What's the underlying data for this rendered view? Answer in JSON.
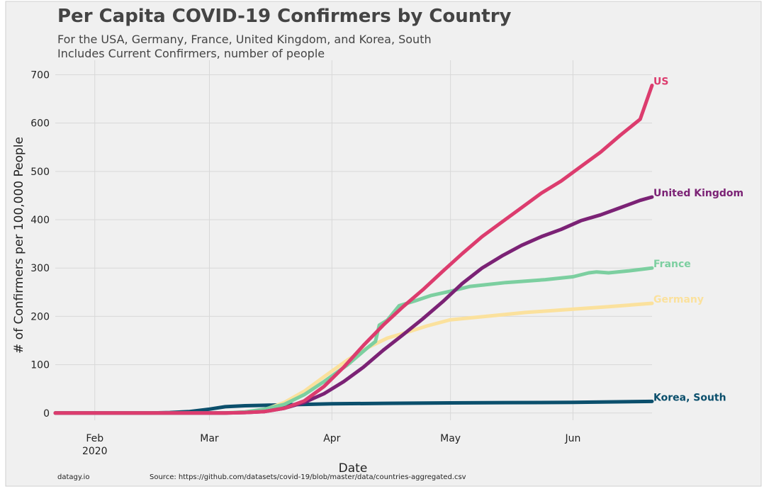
{
  "chart_data": {
    "type": "line",
    "title": "Per Capita COVID-19 Confirmers by Country",
    "subtitle_lines": [
      "For the USA, Germany, France, United Kingdom, and Korea, South",
      "Includes Current Confirmers, number of people"
    ],
    "xlabel": "Date",
    "ylabel": "# of Confirmers per 100,000 People",
    "xlim": [
      "2020-01-22",
      "2020-06-21"
    ],
    "ylim": [
      -15,
      730
    ],
    "x_ticks": [
      {
        "date": "2020-02-01",
        "label": "Feb",
        "sublabel": "2020"
      },
      {
        "date": "2020-03-01",
        "label": "Mar",
        "sublabel": ""
      },
      {
        "date": "2020-04-01",
        "label": "Apr",
        "sublabel": ""
      },
      {
        "date": "2020-05-01",
        "label": "May",
        "sublabel": ""
      },
      {
        "date": "2020-06-01",
        "label": "Jun",
        "sublabel": ""
      }
    ],
    "y_ticks": [
      0,
      100,
      200,
      300,
      400,
      500,
      600,
      700
    ],
    "grid": true,
    "legend": "direct labels at line ends (right)",
    "series": [
      {
        "name": "Korea, South",
        "color": "#0b4f6c",
        "points": [
          [
            "2020-01-22",
            0
          ],
          [
            "2020-02-15",
            0
          ],
          [
            "2020-02-20",
            1
          ],
          [
            "2020-02-25",
            3
          ],
          [
            "2020-03-01",
            8
          ],
          [
            "2020-03-05",
            13
          ],
          [
            "2020-03-10",
            15
          ],
          [
            "2020-03-15",
            16
          ],
          [
            "2020-03-20",
            17
          ],
          [
            "2020-04-01",
            19
          ],
          [
            "2020-04-15",
            20
          ],
          [
            "2020-05-01",
            21
          ],
          [
            "2020-05-15",
            21.5
          ],
          [
            "2020-06-01",
            22
          ],
          [
            "2020-06-21",
            24
          ]
        ]
      },
      {
        "name": "Germany",
        "color": "#fbe19d",
        "points": [
          [
            "2020-01-22",
            0
          ],
          [
            "2020-03-05",
            0
          ],
          [
            "2020-03-10",
            2
          ],
          [
            "2020-03-15",
            7
          ],
          [
            "2020-03-20",
            22
          ],
          [
            "2020-03-25",
            45
          ],
          [
            "2020-03-30",
            75
          ],
          [
            "2020-04-05",
            110
          ],
          [
            "2020-04-10",
            135
          ],
          [
            "2020-04-15",
            155
          ],
          [
            "2020-04-20",
            167
          ],
          [
            "2020-04-25",
            180
          ],
          [
            "2020-05-01",
            193
          ],
          [
            "2020-05-10",
            200
          ],
          [
            "2020-05-20",
            208
          ],
          [
            "2020-06-01",
            215
          ],
          [
            "2020-06-10",
            220
          ],
          [
            "2020-06-21",
            227
          ]
        ]
      },
      {
        "name": "France",
        "color": "#7ccfa0",
        "points": [
          [
            "2020-01-22",
            0
          ],
          [
            "2020-03-05",
            0
          ],
          [
            "2020-03-10",
            2
          ],
          [
            "2020-03-15",
            8
          ],
          [
            "2020-03-20",
            18
          ],
          [
            "2020-03-25",
            38
          ],
          [
            "2020-03-30",
            65
          ],
          [
            "2020-04-05",
            100
          ],
          [
            "2020-04-10",
            135
          ],
          [
            "2020-04-12",
            148
          ],
          [
            "2020-04-13",
            182
          ],
          [
            "2020-04-15",
            192
          ],
          [
            "2020-04-18",
            222
          ],
          [
            "2020-04-22",
            232
          ],
          [
            "2020-04-26",
            243
          ],
          [
            "2020-05-01",
            252
          ],
          [
            "2020-05-06",
            262
          ],
          [
            "2020-05-15",
            270
          ],
          [
            "2020-05-25",
            276
          ],
          [
            "2020-06-01",
            282
          ],
          [
            "2020-06-05",
            290
          ],
          [
            "2020-06-07",
            292
          ],
          [
            "2020-06-10",
            290
          ],
          [
            "2020-06-15",
            294
          ],
          [
            "2020-06-21",
            300
          ]
        ]
      },
      {
        "name": "United Kingdom",
        "color": "#7b2275",
        "points": [
          [
            "2020-01-22",
            0
          ],
          [
            "2020-03-05",
            0
          ],
          [
            "2020-03-10",
            1
          ],
          [
            "2020-03-15",
            3
          ],
          [
            "2020-03-20",
            10
          ],
          [
            "2020-03-25",
            22
          ],
          [
            "2020-03-30",
            40
          ],
          [
            "2020-04-04",
            65
          ],
          [
            "2020-04-09",
            95
          ],
          [
            "2020-04-14",
            130
          ],
          [
            "2020-04-19",
            162
          ],
          [
            "2020-04-24",
            195
          ],
          [
            "2020-04-29",
            230
          ],
          [
            "2020-05-04",
            268
          ],
          [
            "2020-05-09",
            300
          ],
          [
            "2020-05-14",
            325
          ],
          [
            "2020-05-19",
            347
          ],
          [
            "2020-05-24",
            365
          ],
          [
            "2020-05-29",
            380
          ],
          [
            "2020-06-03",
            398
          ],
          [
            "2020-06-08",
            410
          ],
          [
            "2020-06-13",
            425
          ],
          [
            "2020-06-18",
            440
          ],
          [
            "2020-06-21",
            447
          ]
        ]
      },
      {
        "name": "US",
        "color": "#dc3c6e",
        "points": [
          [
            "2020-01-22",
            0
          ],
          [
            "2020-03-05",
            0
          ],
          [
            "2020-03-10",
            1
          ],
          [
            "2020-03-15",
            3
          ],
          [
            "2020-03-20",
            10
          ],
          [
            "2020-03-25",
            25
          ],
          [
            "2020-03-30",
            55
          ],
          [
            "2020-04-04",
            95
          ],
          [
            "2020-04-09",
            140
          ],
          [
            "2020-04-14",
            182
          ],
          [
            "2020-04-19",
            220
          ],
          [
            "2020-04-24",
            255
          ],
          [
            "2020-04-29",
            293
          ],
          [
            "2020-05-04",
            330
          ],
          [
            "2020-05-09",
            365
          ],
          [
            "2020-05-14",
            395
          ],
          [
            "2020-05-19",
            425
          ],
          [
            "2020-05-24",
            455
          ],
          [
            "2020-05-29",
            480
          ],
          [
            "2020-06-03",
            510
          ],
          [
            "2020-06-08",
            540
          ],
          [
            "2020-06-13",
            575
          ],
          [
            "2020-06-18",
            608
          ],
          [
            "2020-06-21",
            678
          ]
        ]
      }
    ]
  },
  "footer": {
    "brand": "datagy.io",
    "source": "Source: https://github.com/datasets/covid-19/blob/master/data/countries-aggregated.csv"
  },
  "colors": {
    "background": "#f0f0f0",
    "grid": "#d8d8d8",
    "text": "#444444"
  }
}
